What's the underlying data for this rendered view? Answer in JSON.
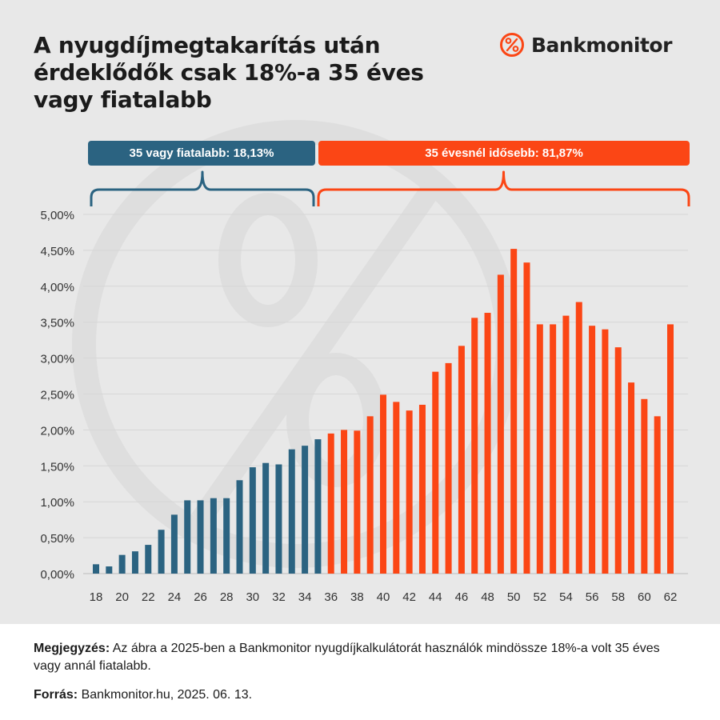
{
  "header": {
    "title": "A nyugdíjmegtakarítás után érdeklődők csak 18%-a 35 éves vagy fiatalabb",
    "brand": "Bankmonitor"
  },
  "segments": {
    "young_label": "35 vagy fiatalabb: 18,13%",
    "old_label": "35 évesnél idősebb: 81,87%"
  },
  "footer": {
    "note_label": "Megjegyzés:",
    "note_text": "Az ábra a 2025-ben a Bankmonitor nyugdíjkalkulátorát használók mindössze 18%-a volt 35 éves vagy annál fiatalabb.",
    "source_label": "Forrás:",
    "source_text": "Bankmonitor.hu, 2025. 06. 13."
  },
  "colors": {
    "young": "#2b6381",
    "old": "#fb4615",
    "background": "#e8e8e8"
  },
  "chart_data": {
    "type": "bar",
    "x": [
      18,
      19,
      20,
      21,
      22,
      23,
      24,
      25,
      26,
      27,
      28,
      29,
      30,
      31,
      32,
      33,
      34,
      35,
      36,
      37,
      38,
      39,
      40,
      41,
      42,
      43,
      44,
      45,
      46,
      47,
      48,
      49,
      50,
      51,
      52,
      53,
      54,
      55,
      56,
      57,
      58,
      59,
      60,
      61,
      62
    ],
    "values": [
      0.13,
      0.1,
      0.26,
      0.31,
      0.4,
      0.61,
      0.82,
      1.02,
      1.02,
      1.05,
      1.05,
      1.3,
      1.48,
      1.54,
      1.52,
      1.73,
      1.78,
      1.87,
      1.95,
      2.0,
      1.99,
      2.19,
      2.49,
      2.39,
      2.27,
      2.35,
      2.81,
      2.93,
      3.17,
      3.56,
      3.63,
      4.16,
      4.52,
      4.33,
      3.47,
      3.47,
      3.59,
      3.78,
      3.45,
      3.4,
      3.15,
      2.66,
      2.43,
      2.19,
      3.47
    ],
    "ylim": [
      0,
      5
    ],
    "yticks": [
      "0,00%",
      "0,50%",
      "1,00%",
      "1,50%",
      "2,00%",
      "2,50%",
      "3,00%",
      "3,50%",
      "4,00%",
      "4,50%",
      "5,00%"
    ],
    "xticks": [
      "18",
      "20",
      "22",
      "24",
      "26",
      "28",
      "30",
      "32",
      "34",
      "36",
      "38",
      "40",
      "42",
      "44",
      "46",
      "48",
      "50",
      "52",
      "54",
      "56",
      "58",
      "60",
      "62"
    ],
    "split_age": 35,
    "grid": true
  }
}
